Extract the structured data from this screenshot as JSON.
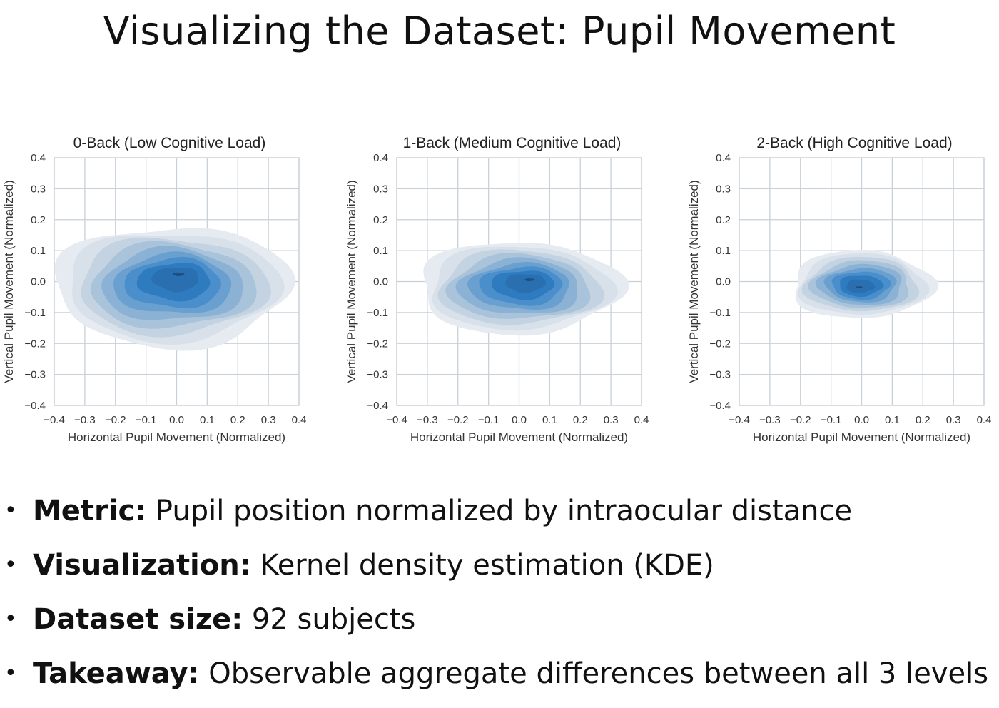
{
  "slide": {
    "title": "Visualizing the Dataset: Pupil Movement"
  },
  "bullets": [
    {
      "label": "Metric:",
      "text": " Pupil position normalized by intraocular distance"
    },
    {
      "label": "Visualization:",
      "text": " Kernel density estimation (KDE)"
    },
    {
      "label": "Dataset size:",
      "text": " 92 subjects"
    },
    {
      "label": "Takeaway:",
      "text": " Observable aggregate differences between all 3 levels"
    }
  ],
  "colors": {
    "kde_levels": [
      "#e6ebf1",
      "#d8e1ea",
      "#c4d3e2",
      "#a9c3da",
      "#8bb2d5",
      "#6aa0d0",
      "#4a8fcb",
      "#2e7bbf",
      "#2a6fb0",
      "#1f4f82"
    ],
    "grid": "#c8d0d8",
    "frame": "#c8d0d8"
  },
  "chart_data": [
    {
      "type": "kde",
      "title": "0-Back (Low Cognitive Load)",
      "xlabel": "Horizontal Pupil Movement (Normalized)",
      "ylabel": "Vertical Pupil Movement (Normalized)",
      "xlim": [
        -0.4,
        0.4
      ],
      "ylim": [
        -0.4,
        0.4
      ],
      "xticks": [
        "−0.4",
        "−0.3",
        "−0.2",
        "−0.1",
        "0.0",
        "0.1",
        "0.2",
        "0.3",
        "0.4"
      ],
      "yticks": [
        "0.4",
        "0.3",
        "0.2",
        "0.1",
        "0.0",
        "−0.1",
        "−0.2",
        "−0.3",
        "−0.4"
      ],
      "grid": true,
      "density": {
        "center": [
          0.0,
          -0.01
        ],
        "outer_extent_x": [
          -0.4,
          0.37
        ],
        "outer_extent_y": [
          -0.21,
          0.18
        ],
        "peak": [
          0.01,
          0.03
        ]
      }
    },
    {
      "type": "kde",
      "title": "1-Back (Medium Cognitive Load)",
      "xlabel": "Horizontal Pupil Movement (Normalized)",
      "ylabel": "Vertical Pupil Movement (Normalized)",
      "xlim": [
        -0.4,
        0.4
      ],
      "ylim": [
        -0.4,
        0.4
      ],
      "xticks": [
        "−0.4",
        "−0.3",
        "−0.2",
        "−0.1",
        "0.0",
        "0.1",
        "0.2",
        "0.3",
        "0.4"
      ],
      "yticks": [
        "0.4",
        "0.3",
        "0.2",
        "0.1",
        "0.0",
        "−0.1",
        "−0.2",
        "−0.3",
        "−0.4"
      ],
      "grid": true,
      "density": {
        "center": [
          0.0,
          0.0
        ],
        "outer_extent_x": [
          -0.33,
          0.33
        ],
        "outer_extent_y": [
          -0.17,
          0.13
        ],
        "peak": [
          0.04,
          0.01
        ]
      }
    },
    {
      "type": "kde",
      "title": "2-Back (High Cognitive Load)",
      "xlabel": "Horizontal Pupil Movement (Normalized)",
      "ylabel": "Vertical Pupil Movement (Normalized)",
      "xlim": [
        -0.4,
        0.4
      ],
      "ylim": [
        -0.4,
        0.4
      ],
      "xticks": [
        "−0.4",
        "−0.3",
        "−0.2",
        "−0.1",
        "0.0",
        "0.1",
        "0.2",
        "0.3",
        "0.4"
      ],
      "yticks": [
        "0.4",
        "0.3",
        "0.2",
        "0.1",
        "0.0",
        "−0.1",
        "−0.2",
        "−0.3",
        "−0.4"
      ],
      "grid": true,
      "density": {
        "center": [
          -0.01,
          -0.01
        ],
        "outer_extent_x": [
          -0.23,
          0.23
        ],
        "outer_extent_y": [
          -0.12,
          0.1
        ],
        "peak": [
          -0.01,
          -0.02
        ]
      }
    }
  ]
}
